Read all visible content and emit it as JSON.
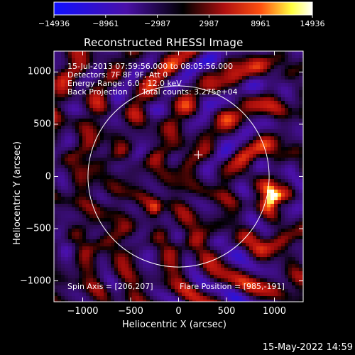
{
  "colorbar": {
    "tick_labels": [
      "-14936",
      "-8961",
      "-2987",
      "2987",
      "8961",
      "14936"
    ],
    "range": [
      -14936,
      14936
    ],
    "colors": [
      "#1010ff",
      "#4010a0",
      "#000000",
      "#b01010",
      "#ff6010",
      "#ffff40",
      "#ffffff"
    ]
  },
  "title": "Reconstructed RHESSI Image",
  "info": {
    "line1": "15-Jul-2013 07:59:56.000 to 08:05:56.000",
    "line2": "Detectors: 7F 8F 9F, Att 0",
    "line3": "Energy Range: 6.0 - 12.0 keV",
    "line4_left": "Back Projection",
    "line4_right": "Total counts: 3.275e+04"
  },
  "footer": {
    "spin_axis": "Spin Axis = [206,207]",
    "flare_position": "Flare Position = [985,-191]"
  },
  "timestamp": "15-May-2022 14:59",
  "chart_data": {
    "type": "heatmap",
    "title": "Reconstructed RHESSI Image",
    "xlabel": "Heliocentric X (arcsec)",
    "ylabel": "Heliocentric Y (arcsec)",
    "xlim": [
      -1300,
      1300
    ],
    "ylim": [
      -1200,
      1200
    ],
    "x_ticks": [
      -1000,
      -500,
      0,
      500,
      1000
    ],
    "x_tick_labels": [
      "−1000",
      "−500",
      "0",
      "500",
      "1000"
    ],
    "y_ticks": [
      1000,
      500,
      0,
      -500,
      -1000
    ],
    "y_tick_labels": [
      "1000",
      "500",
      "0",
      "−500",
      "−1000"
    ],
    "solar_limb": {
      "center": [
        0,
        0
      ],
      "radius_arcsec": 945
    },
    "spin_axis_arcsec": [
      206,
      207
    ],
    "flare_position_arcsec": [
      985,
      -191
    ],
    "bright_sources": [
      {
        "x": 985,
        "y": -191,
        "level": "peak"
      },
      {
        "x": -250,
        "y": -300,
        "level": "secondary"
      }
    ],
    "grid": false
  }
}
